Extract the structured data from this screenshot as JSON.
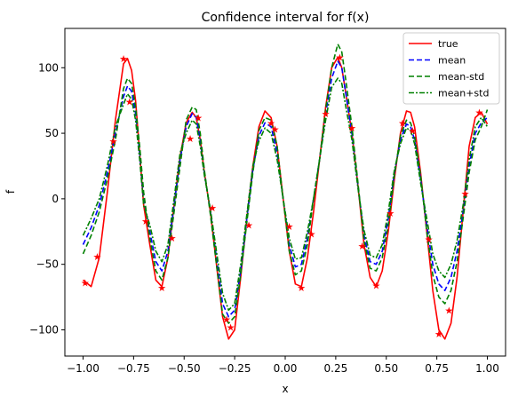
{
  "chart_data": {
    "type": "line",
    "title": "Confidence interval for f(x)",
    "xlabel": "x",
    "ylabel": "f",
    "xlim": [
      -1.09,
      1.09
    ],
    "ylim": [
      -120,
      130
    ],
    "x_ticks": [
      -1.0,
      -0.75,
      -0.5,
      -0.25,
      0.0,
      0.25,
      0.5,
      0.75,
      1.0
    ],
    "x_tick_labels": [
      "−1.00",
      "−0.75",
      "−0.50",
      "−0.25",
      "0.00",
      "0.25",
      "0.50",
      "0.75",
      "1.00"
    ],
    "y_ticks": [
      -100,
      -50,
      0,
      50,
      100
    ],
    "y_tick_labels": [
      "−100",
      "−50",
      "0",
      "50",
      "100"
    ],
    "grid": false,
    "legend_position": "top-right",
    "series": [
      {
        "name": "true",
        "color": "#ff0000",
        "dash": "solid",
        "x": [
          -1.0,
          -0.96,
          -0.92,
          -0.88,
          -0.84,
          -0.8,
          -0.78,
          -0.76,
          -0.74,
          -0.72,
          -0.7,
          -0.67,
          -0.64,
          -0.61,
          -0.58,
          -0.55,
          -0.52,
          -0.49,
          -0.46,
          -0.44,
          -0.42,
          -0.4,
          -0.37,
          -0.34,
          -0.31,
          -0.28,
          -0.25,
          -0.22,
          -0.19,
          -0.16,
          -0.13,
          -0.1,
          -0.07,
          -0.04,
          -0.01,
          0.02,
          0.05,
          0.08,
          0.11,
          0.14,
          0.17,
          0.2,
          0.23,
          0.26,
          0.28,
          0.3,
          0.33,
          0.36,
          0.39,
          0.42,
          0.45,
          0.48,
          0.51,
          0.54,
          0.57,
          0.6,
          0.62,
          0.64,
          0.67,
          0.7,
          0.73,
          0.76,
          0.79,
          0.82,
          0.85,
          0.88,
          0.91,
          0.94,
          0.97,
          1.0
        ],
        "y": [
          -62,
          -67,
          -45,
          5,
          60,
          103,
          107,
          98,
          75,
          35,
          -5,
          -35,
          -62,
          -67,
          -45,
          -5,
          32,
          58,
          66,
          62,
          45,
          20,
          -10,
          -50,
          -90,
          -107,
          -100,
          -60,
          -15,
          25,
          55,
          67,
          62,
          40,
          0,
          -40,
          -65,
          -67,
          -45,
          -10,
          30,
          70,
          100,
          108,
          100,
          80,
          50,
          10,
          -35,
          -60,
          -67,
          -55,
          -25,
          15,
          50,
          67,
          66,
          55,
          20,
          -25,
          -70,
          -100,
          -107,
          -95,
          -60,
          -10,
          40,
          62,
          66,
          57
        ]
      },
      {
        "name": "mean",
        "color": "#0000ff",
        "dash": "dashed",
        "x": [
          -1.0,
          -0.96,
          -0.92,
          -0.88,
          -0.84,
          -0.8,
          -0.78,
          -0.76,
          -0.74,
          -0.72,
          -0.7,
          -0.67,
          -0.64,
          -0.61,
          -0.58,
          -0.55,
          -0.52,
          -0.49,
          -0.46,
          -0.44,
          -0.42,
          -0.4,
          -0.37,
          -0.34,
          -0.31,
          -0.28,
          -0.25,
          -0.22,
          -0.19,
          -0.16,
          -0.13,
          -0.1,
          -0.07,
          -0.04,
          -0.01,
          0.02,
          0.05,
          0.08,
          0.11,
          0.14,
          0.17,
          0.2,
          0.23,
          0.26,
          0.28,
          0.3,
          0.33,
          0.36,
          0.39,
          0.42,
          0.45,
          0.48,
          0.51,
          0.54,
          0.57,
          0.6,
          0.62,
          0.64,
          0.67,
          0.7,
          0.73,
          0.76,
          0.79,
          0.82,
          0.85,
          0.88,
          0.91,
          0.94,
          0.97,
          1.0
        ],
        "y": [
          -35,
          -22,
          -5,
          20,
          50,
          78,
          86,
          82,
          65,
          35,
          0,
          -25,
          -48,
          -55,
          -40,
          -5,
          30,
          55,
          65,
          62,
          45,
          20,
          -10,
          -45,
          -80,
          -90,
          -85,
          -55,
          -15,
          22,
          48,
          58,
          55,
          35,
          0,
          -35,
          -52,
          -50,
          -30,
          0,
          30,
          65,
          92,
          105,
          100,
          80,
          50,
          10,
          -28,
          -48,
          -50,
          -40,
          -15,
          20,
          45,
          57,
          55,
          45,
          15,
          -20,
          -50,
          -65,
          -70,
          -60,
          -40,
          -10,
          25,
          50,
          58,
          62
        ]
      },
      {
        "name": "mean-std",
        "color": "#008000",
        "dash": "dashed",
        "x": [
          -1.0,
          -0.96,
          -0.92,
          -0.88,
          -0.84,
          -0.8,
          -0.78,
          -0.76,
          -0.74,
          -0.72,
          -0.7,
          -0.67,
          -0.64,
          -0.61,
          -0.58,
          -0.55,
          -0.52,
          -0.49,
          -0.46,
          -0.44,
          -0.42,
          -0.4,
          -0.37,
          -0.34,
          -0.31,
          -0.28,
          -0.25,
          -0.22,
          -0.19,
          -0.16,
          -0.13,
          -0.1,
          -0.07,
          -0.04,
          -0.01,
          0.02,
          0.05,
          0.08,
          0.11,
          0.14,
          0.17,
          0.2,
          0.23,
          0.26,
          0.28,
          0.3,
          0.33,
          0.36,
          0.39,
          0.42,
          0.45,
          0.48,
          0.51,
          0.54,
          0.57,
          0.6,
          0.62,
          0.64,
          0.67,
          0.7,
          0.73,
          0.76,
          0.79,
          0.82,
          0.85,
          0.88,
          0.91,
          0.94,
          0.97,
          1.0
        ],
        "y": [
          -42,
          -28,
          -10,
          15,
          45,
          84,
          92,
          88,
          70,
          40,
          5,
          -30,
          -55,
          -62,
          -45,
          -10,
          25,
          60,
          70,
          68,
          50,
          22,
          -12,
          -50,
          -88,
          -95,
          -90,
          -58,
          -18,
          20,
          52,
          62,
          60,
          40,
          0,
          -40,
          -58,
          -55,
          -35,
          0,
          30,
          68,
          100,
          118,
          112,
          90,
          55,
          12,
          -32,
          -53,
          -55,
          -45,
          -20,
          18,
          48,
          60,
          58,
          48,
          18,
          -25,
          -58,
          -75,
          -80,
          -70,
          -48,
          -15,
          20,
          45,
          55,
          68
        ]
      },
      {
        "name": "mean+std",
        "color": "#008000",
        "dash": "dashdot",
        "x": [
          -1.0,
          -0.96,
          -0.92,
          -0.88,
          -0.84,
          -0.8,
          -0.78,
          -0.76,
          -0.74,
          -0.72,
          -0.7,
          -0.67,
          -0.64,
          -0.61,
          -0.58,
          -0.55,
          -0.52,
          -0.49,
          -0.46,
          -0.44,
          -0.42,
          -0.4,
          -0.37,
          -0.34,
          -0.31,
          -0.28,
          -0.25,
          -0.22,
          -0.19,
          -0.16,
          -0.13,
          -0.1,
          -0.07,
          -0.04,
          -0.01,
          0.02,
          0.05,
          0.08,
          0.11,
          0.14,
          0.17,
          0.2,
          0.23,
          0.26,
          0.28,
          0.3,
          0.33,
          0.36,
          0.39,
          0.42,
          0.45,
          0.48,
          0.51,
          0.54,
          0.57,
          0.6,
          0.62,
          0.64,
          0.67,
          0.7,
          0.73,
          0.76,
          0.79,
          0.82,
          0.85,
          0.88,
          0.91,
          0.94,
          0.97,
          1.0
        ],
        "y": [
          -28,
          -15,
          0,
          25,
          55,
          72,
          80,
          76,
          60,
          30,
          -5,
          -20,
          -40,
          -48,
          -35,
          0,
          35,
          50,
          60,
          57,
          40,
          18,
          -8,
          -40,
          -72,
          -85,
          -80,
          -50,
          -12,
          25,
          44,
          54,
          50,
          30,
          0,
          -30,
          -46,
          -45,
          -25,
          0,
          30,
          60,
          85,
          92,
          88,
          70,
          45,
          8,
          -24,
          -43,
          -45,
          -35,
          -10,
          22,
          42,
          54,
          52,
          42,
          12,
          -15,
          -42,
          -55,
          -60,
          -50,
          -32,
          -5,
          30,
          55,
          62,
          55
        ]
      }
    ],
    "markers": {
      "marker_symbol": "★",
      "color": "#ff0000",
      "x": [
        -0.99,
        -0.93,
        -0.85,
        -0.8,
        -0.77,
        -0.69,
        -0.61,
        -0.56,
        -0.47,
        -0.43,
        -0.36,
        -0.29,
        -0.27,
        -0.18,
        -0.07,
        -0.05,
        0.02,
        0.08,
        0.13,
        0.2,
        0.27,
        0.33,
        0.38,
        0.45,
        0.52,
        0.58,
        0.63,
        0.71,
        0.76,
        0.81,
        0.89,
        0.96
      ],
      "y": [
        -64,
        -44,
        44,
        107,
        74,
        -17,
        -68,
        -30,
        46,
        62,
        -7,
        -92,
        -98,
        -20,
        58,
        53,
        -21,
        -68,
        -27,
        65,
        108,
        54,
        -36,
        -66,
        -11,
        58,
        52,
        -31,
        -103,
        -85,
        4,
        66
      ]
    }
  }
}
